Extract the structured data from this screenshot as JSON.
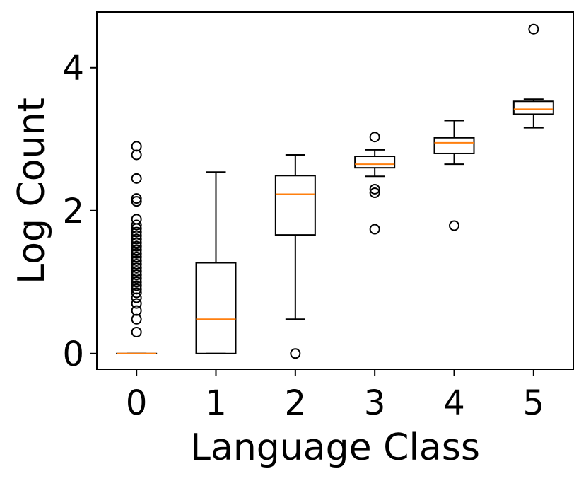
{
  "chart_data": {
    "type": "box",
    "xlabel": "Language Class",
    "ylabel": "Log Count",
    "categories": [
      "0",
      "1",
      "2",
      "3",
      "4",
      "5"
    ],
    "ylim": [
      -0.22,
      4.78
    ],
    "yticks": [
      0,
      2,
      4
    ],
    "ytick_labels": [
      "0",
      "2",
      "4"
    ],
    "grid": false,
    "colors": {
      "box": "#000000",
      "median": "#ff7f0e",
      "flier": "#000000",
      "background": "#ffffff"
    },
    "boxes": [
      {
        "category": "0",
        "whislo": 0,
        "q1": 0,
        "med": 0,
        "q3": 0,
        "whishi": 0,
        "fliers": [
          0.3,
          0.48,
          0.6,
          0.7,
          0.78,
          0.85,
          0.9,
          0.95,
          1.0,
          1.05,
          1.1,
          1.15,
          1.2,
          1.25,
          1.3,
          1.35,
          1.4,
          1.45,
          1.5,
          1.55,
          1.6,
          1.65,
          1.7,
          1.75,
          1.8,
          1.88,
          2.13,
          2.17,
          2.45,
          2.78,
          2.9
        ]
      },
      {
        "category": "1",
        "whislo": 0,
        "q1": 0,
        "med": 0.48,
        "q3": 1.27,
        "whishi": 2.54,
        "fliers": []
      },
      {
        "category": "2",
        "whislo": 0.48,
        "q1": 1.66,
        "med": 2.23,
        "q3": 2.49,
        "whishi": 2.78,
        "fliers": [
          0
        ]
      },
      {
        "category": "3",
        "whislo": 2.48,
        "q1": 2.6,
        "med": 2.65,
        "q3": 2.76,
        "whishi": 2.85,
        "fliers": [
          1.74,
          2.25,
          2.3,
          3.03
        ]
      },
      {
        "category": "4",
        "whislo": 2.65,
        "q1": 2.8,
        "med": 2.95,
        "q3": 3.02,
        "whishi": 3.26,
        "fliers": [
          1.79
        ]
      },
      {
        "category": "5",
        "whislo": 3.16,
        "q1": 3.35,
        "med": 3.42,
        "q3": 3.53,
        "whishi": 3.56,
        "fliers": [
          4.54
        ]
      }
    ]
  }
}
